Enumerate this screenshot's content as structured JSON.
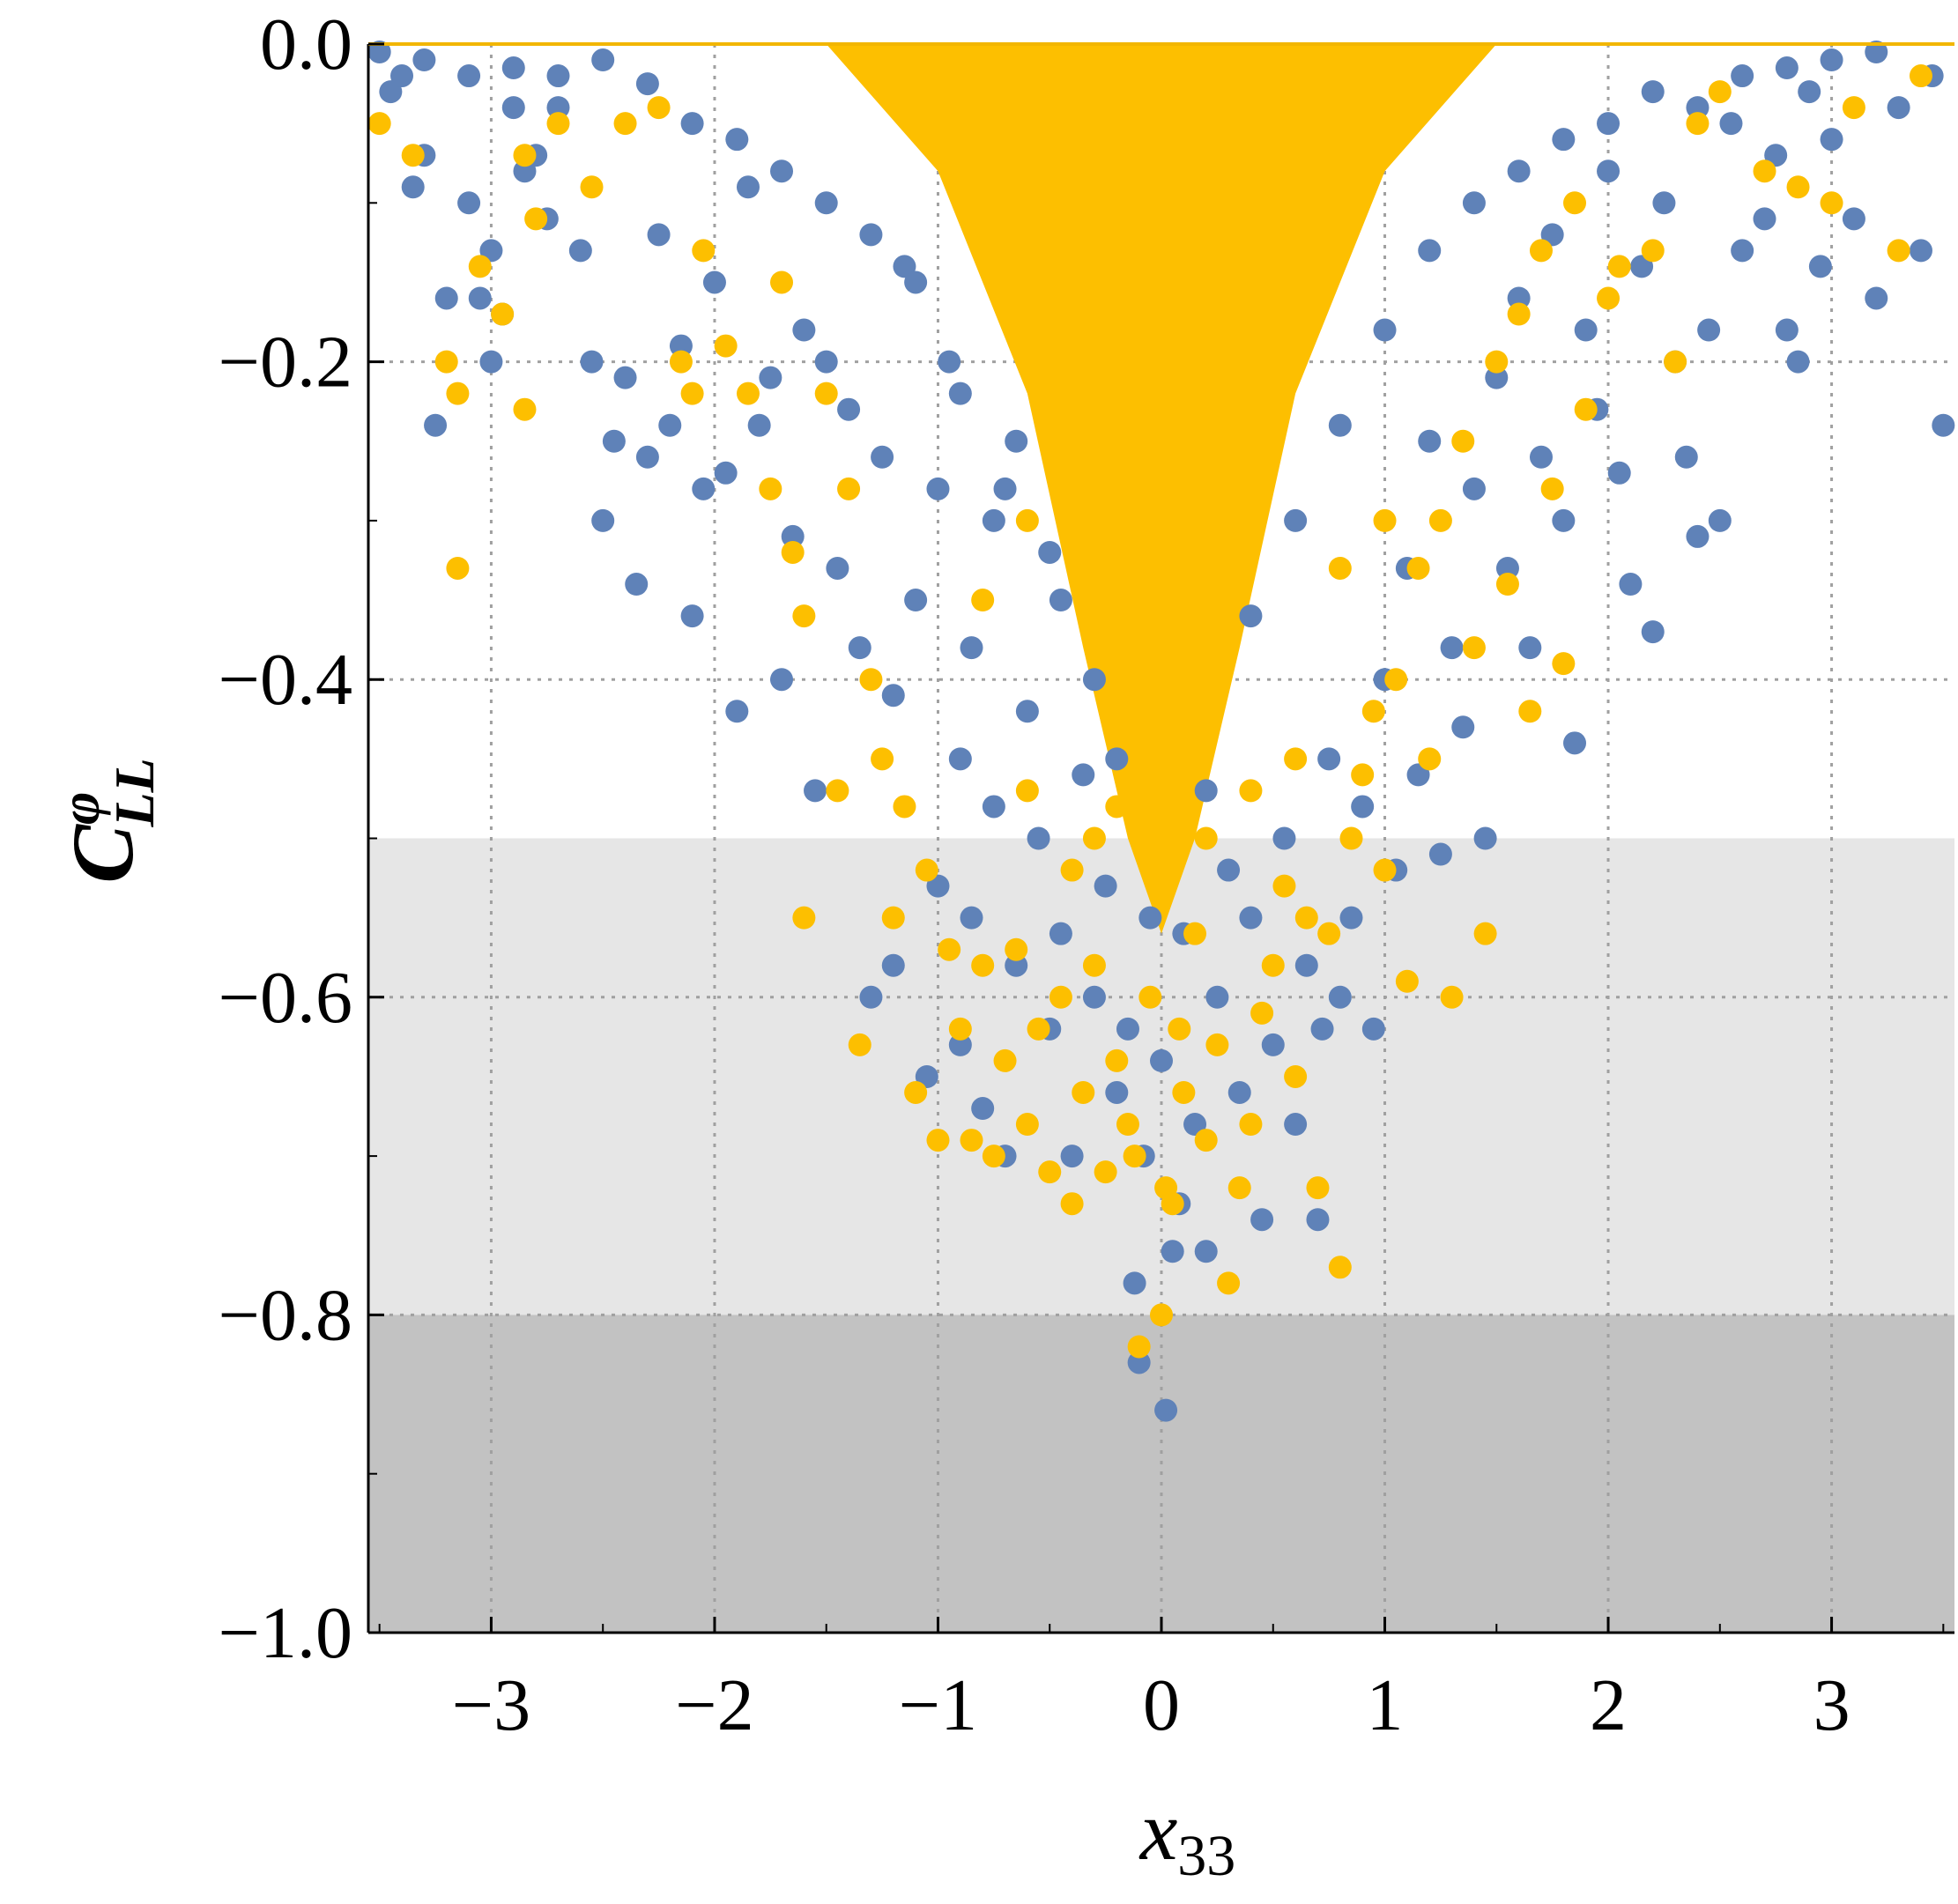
{
  "chart_data": {
    "type": "scatter",
    "title": "",
    "xlabel": {
      "base": "x",
      "subscript": "33"
    },
    "ylabel": {
      "base": "C",
      "superscript": "φ",
      "subscript": "LL"
    },
    "xlim": [
      -3.55,
      3.55
    ],
    "ylim": [
      -1.0,
      0.0
    ],
    "xticks": [
      -3,
      -2,
      -1,
      0,
      1,
      2,
      3
    ],
    "xtick_labels": [
      "−3",
      "−2",
      "−1",
      "0",
      "1",
      "2",
      "3"
    ],
    "yticks": [
      0.0,
      -0.2,
      -0.4,
      -0.6,
      -0.8,
      -1.0
    ],
    "ytick_labels": [
      "0.0",
      "−0.2",
      "−0.4",
      "−0.6",
      "−0.8",
      "−1.0"
    ],
    "grid": true,
    "legend": "none",
    "bands": [
      {
        "y_from": -0.8,
        "y_to": -0.5,
        "color": "#e6e6e6"
      },
      {
        "y_from": -1.0,
        "y_to": -0.8,
        "color": "#c2c2c2"
      }
    ],
    "series": [
      {
        "color": "#5f82b8",
        "points": [
          [
            -3.45,
            -0.03
          ],
          [
            -3.4,
            -0.02
          ],
          [
            -3.35,
            -0.09
          ],
          [
            -3.3,
            -0.07
          ],
          [
            -3.25,
            -0.24
          ],
          [
            -3.2,
            -0.16
          ],
          [
            -3.1,
            -0.1
          ],
          [
            -3.05,
            -0.16
          ],
          [
            -3.0,
            -0.13
          ],
          [
            -3.0,
            -0.2
          ],
          [
            -2.95,
            -0.17
          ],
          [
            -2.9,
            -0.04
          ],
          [
            -2.85,
            -0.08
          ],
          [
            -2.8,
            -0.07
          ],
          [
            -2.75,
            -0.11
          ],
          [
            -2.7,
            -0.04
          ],
          [
            -2.6,
            -0.13
          ],
          [
            -2.55,
            -0.2
          ],
          [
            -2.5,
            -0.3
          ],
          [
            -2.45,
            -0.25
          ],
          [
            -2.4,
            -0.21
          ],
          [
            -2.35,
            -0.34
          ],
          [
            -2.3,
            -0.26
          ],
          [
            -2.25,
            -0.12
          ],
          [
            -2.2,
            -0.24
          ],
          [
            -2.15,
            -0.19
          ],
          [
            -2.1,
            -0.36
          ],
          [
            -2.05,
            -0.28
          ],
          [
            -2.0,
            -0.15
          ],
          [
            -1.95,
            -0.27
          ],
          [
            -1.9,
            -0.42
          ],
          [
            -1.85,
            -0.09
          ],
          [
            -1.8,
            -0.24
          ],
          [
            -1.75,
            -0.21
          ],
          [
            -1.7,
            -0.4
          ],
          [
            -1.65,
            -0.31
          ],
          [
            -1.6,
            -0.18
          ],
          [
            -1.55,
            -0.47
          ],
          [
            -1.5,
            -0.2
          ],
          [
            -1.45,
            -0.33
          ],
          [
            -1.4,
            -0.23
          ],
          [
            -1.35,
            -0.38
          ],
          [
            -1.3,
            -0.6
          ],
          [
            -1.25,
            -0.26
          ],
          [
            -1.2,
            -0.41
          ],
          [
            -1.2,
            -0.58
          ],
          [
            -1.15,
            -0.14
          ],
          [
            -1.1,
            -0.35
          ],
          [
            -1.05,
            -0.65
          ],
          [
            -1.0,
            -0.28
          ],
          [
            -1.0,
            -0.53
          ],
          [
            -0.95,
            -0.2
          ],
          [
            -0.9,
            -0.45
          ],
          [
            -0.9,
            -0.63
          ],
          [
            -0.85,
            -0.38
          ],
          [
            -0.85,
            -0.55
          ],
          [
            -0.8,
            -0.67
          ],
          [
            -0.75,
            -0.3
          ],
          [
            -0.75,
            -0.48
          ],
          [
            -0.7,
            -0.7
          ],
          [
            -0.65,
            -0.25
          ],
          [
            -0.65,
            -0.58
          ],
          [
            -0.6,
            -0.42
          ],
          [
            -0.55,
            -0.5
          ],
          [
            -0.5,
            -0.62
          ],
          [
            -0.45,
            -0.35
          ],
          [
            -0.45,
            -0.56
          ],
          [
            -0.4,
            -0.7
          ],
          [
            -0.35,
            -0.46
          ],
          [
            -0.3,
            -0.6
          ],
          [
            -0.25,
            -0.53
          ],
          [
            -0.2,
            -0.66
          ],
          [
            -0.15,
            -0.62
          ],
          [
            -0.12,
            -0.78
          ],
          [
            -0.1,
            -0.83
          ],
          [
            -0.08,
            -0.7
          ],
          [
            -0.05,
            -0.55
          ],
          [
            0.0,
            -0.64
          ],
          [
            0.02,
            -0.86
          ],
          [
            0.05,
            -0.76
          ],
          [
            0.08,
            -0.73
          ],
          [
            0.1,
            -0.56
          ],
          [
            0.15,
            -0.68
          ],
          [
            0.2,
            -0.76
          ],
          [
            0.25,
            -0.6
          ],
          [
            0.3,
            -0.52
          ],
          [
            0.35,
            -0.66
          ],
          [
            0.4,
            -0.55
          ],
          [
            0.45,
            -0.74
          ],
          [
            0.5,
            -0.63
          ],
          [
            0.55,
            -0.5
          ],
          [
            0.6,
            -0.68
          ],
          [
            0.65,
            -0.58
          ],
          [
            0.7,
            -0.74
          ],
          [
            0.72,
            -0.62
          ],
          [
            0.75,
            -0.45
          ],
          [
            0.8,
            -0.6
          ],
          [
            0.85,
            -0.55
          ],
          [
            0.9,
            -0.48
          ],
          [
            0.95,
            -0.62
          ],
          [
            1.0,
            -0.4
          ],
          [
            1.05,
            -0.52
          ],
          [
            1.1,
            -0.33
          ],
          [
            1.15,
            -0.46
          ],
          [
            1.2,
            -0.25
          ],
          [
            1.25,
            -0.51
          ],
          [
            1.3,
            -0.38
          ],
          [
            1.35,
            -0.43
          ],
          [
            1.4,
            -0.28
          ],
          [
            1.45,
            -0.5
          ],
          [
            1.5,
            -0.21
          ],
          [
            1.55,
            -0.33
          ],
          [
            1.6,
            -0.16
          ],
          [
            1.65,
            -0.38
          ],
          [
            1.7,
            -0.26
          ],
          [
            1.75,
            -0.12
          ],
          [
            1.8,
            -0.3
          ],
          [
            1.85,
            -0.44
          ],
          [
            1.9,
            -0.18
          ],
          [
            1.95,
            -0.23
          ],
          [
            2.0,
            -0.08
          ],
          [
            2.05,
            -0.27
          ],
          [
            2.1,
            -0.34
          ],
          [
            2.15,
            -0.14
          ],
          [
            2.2,
            -0.37
          ],
          [
            2.25,
            -0.1
          ],
          [
            2.3,
            -0.2
          ],
          [
            2.35,
            -0.26
          ],
          [
            2.4,
            -0.31
          ],
          [
            2.45,
            -0.18
          ],
          [
            2.5,
            -0.3
          ],
          [
            2.55,
            -0.05
          ],
          [
            2.6,
            -0.13
          ],
          [
            2.7,
            -0.11
          ],
          [
            2.75,
            -0.07
          ],
          [
            2.8,
            -0.18
          ],
          [
            2.85,
            -0.2
          ],
          [
            2.9,
            -0.03
          ],
          [
            2.95,
            -0.14
          ],
          [
            3.0,
            -0.06
          ],
          [
            3.1,
            -0.11
          ],
          [
            3.2,
            -0.16
          ],
          [
            3.3,
            -0.04
          ],
          [
            3.4,
            -0.13
          ],
          [
            3.5,
            -0.24
          ],
          [
            -3.5,
            -0.005
          ],
          [
            -3.3,
            -0.01
          ],
          [
            -3.1,
            -0.02
          ],
          [
            -2.9,
            -0.015
          ],
          [
            -2.7,
            -0.02
          ],
          [
            -2.5,
            -0.01
          ],
          [
            -2.3,
            -0.025
          ],
          [
            -2.1,
            -0.05
          ],
          [
            -1.9,
            -0.06
          ],
          [
            -1.7,
            -0.08
          ],
          [
            -1.5,
            -0.1
          ],
          [
            -1.3,
            -0.12
          ],
          [
            -1.1,
            -0.15
          ],
          [
            -0.9,
            -0.22
          ],
          [
            -0.7,
            -0.28
          ],
          [
            -0.5,
            -0.32
          ],
          [
            -0.3,
            -0.4
          ],
          [
            -0.2,
            -0.45
          ],
          [
            0.2,
            -0.47
          ],
          [
            0.4,
            -0.36
          ],
          [
            0.6,
            -0.3
          ],
          [
            0.8,
            -0.24
          ],
          [
            1.0,
            -0.18
          ],
          [
            1.2,
            -0.13
          ],
          [
            1.4,
            -0.1
          ],
          [
            1.6,
            -0.08
          ],
          [
            1.8,
            -0.06
          ],
          [
            2.0,
            -0.05
          ],
          [
            2.2,
            -0.03
          ],
          [
            2.4,
            -0.04
          ],
          [
            2.6,
            -0.02
          ],
          [
            2.8,
            -0.015
          ],
          [
            3.0,
            -0.01
          ],
          [
            3.2,
            -0.005
          ],
          [
            3.45,
            -0.02
          ]
        ]
      },
      {
        "color": "#fdbf00",
        "points": [
          [
            -3.5,
            -0.05
          ],
          [
            -3.35,
            -0.07
          ],
          [
            -3.2,
            -0.2
          ],
          [
            -3.15,
            -0.33
          ],
          [
            -3.15,
            -0.22
          ],
          [
            -3.05,
            -0.14
          ],
          [
            -2.95,
            -0.17
          ],
          [
            -2.85,
            -0.23
          ],
          [
            -2.85,
            -0.07
          ],
          [
            -2.8,
            -0.11
          ],
          [
            -2.7,
            -0.05
          ],
          [
            -2.55,
            -0.09
          ],
          [
            -2.4,
            -0.05
          ],
          [
            -2.25,
            -0.04
          ],
          [
            -2.15,
            -0.2
          ],
          [
            -2.1,
            -0.22
          ],
          [
            -2.05,
            -0.13
          ],
          [
            -1.95,
            -0.19
          ],
          [
            -1.85,
            -0.22
          ],
          [
            -1.75,
            -0.28
          ],
          [
            -1.7,
            -0.15
          ],
          [
            -1.65,
            -0.32
          ],
          [
            -1.6,
            -0.36
          ],
          [
            -1.6,
            -0.55
          ],
          [
            -1.5,
            -0.22
          ],
          [
            -1.45,
            -0.47
          ],
          [
            -1.4,
            -0.28
          ],
          [
            -1.35,
            -0.63
          ],
          [
            -1.3,
            -0.4
          ],
          [
            -1.25,
            -0.45
          ],
          [
            -1.2,
            -0.55
          ],
          [
            -1.15,
            -0.48
          ],
          [
            -1.1,
            -0.66
          ],
          [
            -1.05,
            -0.52
          ],
          [
            -1.0,
            -0.69
          ],
          [
            -0.95,
            -0.57
          ],
          [
            -0.9,
            -0.62
          ],
          [
            -0.85,
            -0.69
          ],
          [
            -0.8,
            -0.58
          ],
          [
            -0.75,
            -0.7
          ],
          [
            -0.7,
            -0.64
          ],
          [
            -0.65,
            -0.57
          ],
          [
            -0.6,
            -0.68
          ],
          [
            -0.55,
            -0.62
          ],
          [
            -0.5,
            -0.71
          ],
          [
            -0.45,
            -0.6
          ],
          [
            -0.4,
            -0.73
          ],
          [
            -0.35,
            -0.66
          ],
          [
            -0.3,
            -0.58
          ],
          [
            -0.25,
            -0.71
          ],
          [
            -0.2,
            -0.64
          ],
          [
            -0.15,
            -0.68
          ],
          [
            -0.12,
            -0.7
          ],
          [
            -0.1,
            -0.82
          ],
          [
            -0.05,
            -0.6
          ],
          [
            0.0,
            -0.8
          ],
          [
            0.02,
            -0.72
          ],
          [
            0.05,
            -0.73
          ],
          [
            0.08,
            -0.62
          ],
          [
            0.1,
            -0.66
          ],
          [
            0.15,
            -0.56
          ],
          [
            0.2,
            -0.69
          ],
          [
            0.25,
            -0.63
          ],
          [
            0.3,
            -0.78
          ],
          [
            0.35,
            -0.72
          ],
          [
            0.4,
            -0.68
          ],
          [
            0.45,
            -0.61
          ],
          [
            0.5,
            -0.58
          ],
          [
            0.55,
            -0.53
          ],
          [
            0.6,
            -0.65
          ],
          [
            0.65,
            -0.55
          ],
          [
            0.7,
            -0.72
          ],
          [
            0.75,
            -0.56
          ],
          [
            0.8,
            -0.77
          ],
          [
            0.85,
            -0.5
          ],
          [
            0.9,
            -0.46
          ],
          [
            0.95,
            -0.42
          ],
          [
            1.0,
            -0.52
          ],
          [
            1.05,
            -0.4
          ],
          [
            1.1,
            -0.59
          ],
          [
            1.15,
            -0.33
          ],
          [
            1.2,
            -0.45
          ],
          [
            1.25,
            -0.3
          ],
          [
            1.3,
            -0.6
          ],
          [
            1.35,
            -0.25
          ],
          [
            1.4,
            -0.38
          ],
          [
            1.45,
            -0.56
          ],
          [
            1.5,
            -0.2
          ],
          [
            1.55,
            -0.34
          ],
          [
            1.6,
            -0.17
          ],
          [
            1.65,
            -0.42
          ],
          [
            1.7,
            -0.13
          ],
          [
            1.75,
            -0.28
          ],
          [
            1.8,
            -0.39
          ],
          [
            1.85,
            -0.1
          ],
          [
            1.9,
            -0.23
          ],
          [
            2.0,
            -0.16
          ],
          [
            2.05,
            -0.14
          ],
          [
            2.2,
            -0.13
          ],
          [
            2.3,
            -0.2
          ],
          [
            2.4,
            -0.05
          ],
          [
            2.5,
            -0.03
          ],
          [
            2.7,
            -0.08
          ],
          [
            2.85,
            -0.09
          ],
          [
            3.0,
            -0.1
          ],
          [
            3.1,
            -0.04
          ],
          [
            3.3,
            -0.13
          ],
          [
            3.4,
            -0.02
          ],
          [
            -0.6,
            -0.47
          ],
          [
            -0.4,
            -0.52
          ],
          [
            -0.3,
            -0.5
          ],
          [
            -0.2,
            -0.48
          ],
          [
            0.2,
            -0.5
          ],
          [
            0.4,
            -0.47
          ],
          [
            0.6,
            -0.45
          ],
          [
            -0.8,
            -0.35
          ],
          [
            -0.6,
            -0.3
          ],
          [
            0.8,
            -0.33
          ],
          [
            1.0,
            -0.3
          ]
        ]
      }
    ],
    "core_region": {
      "color": "#fdbf00",
      "vertices": [
        [
          -1.5,
          0.0
        ],
        [
          1.5,
          0.0
        ],
        [
          1.0,
          -0.08
        ],
        [
          0.6,
          -0.22
        ],
        [
          0.35,
          -0.38
        ],
        [
          0.15,
          -0.5
        ],
        [
          0.0,
          -0.56
        ],
        [
          -0.15,
          -0.5
        ],
        [
          -0.35,
          -0.38
        ],
        [
          -0.6,
          -0.22
        ],
        [
          -1.0,
          -0.08
        ]
      ]
    }
  }
}
